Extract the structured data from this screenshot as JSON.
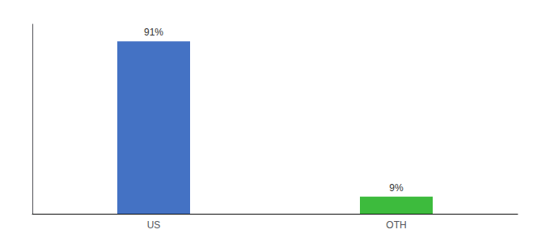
{
  "chart_data": {
    "type": "bar",
    "categories": [
      "US",
      "OTH"
    ],
    "values": [
      91,
      9
    ],
    "value_labels": [
      "91%",
      "9%"
    ],
    "colors": [
      "#4472c4",
      "#3dbb3d"
    ],
    "ylim": [
      0,
      100
    ],
    "grid": false,
    "data_labels": true,
    "tick_labels": "x"
  }
}
